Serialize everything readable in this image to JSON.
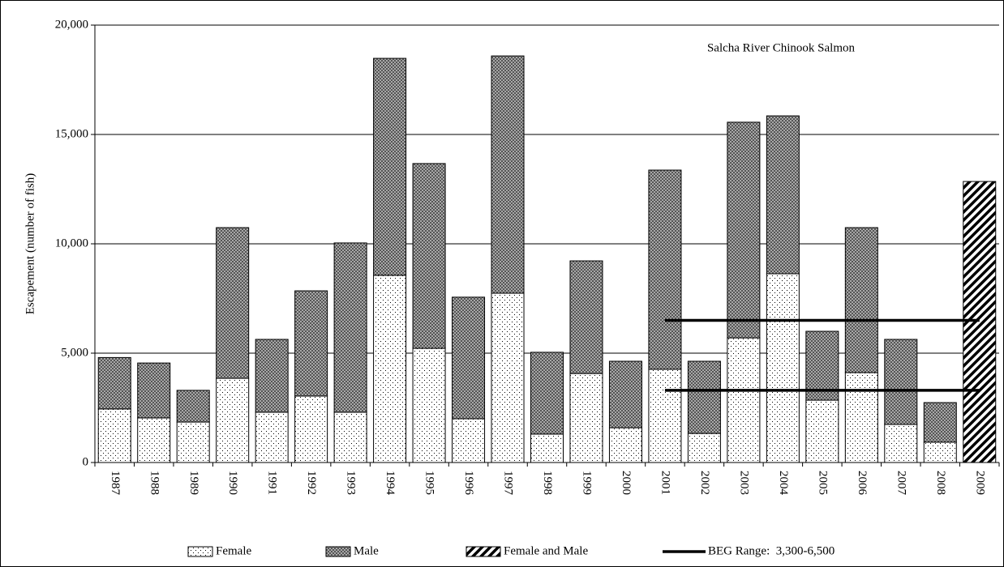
{
  "chart_data": {
    "type": "bar",
    "stacked": true,
    "annotation": "Salcha River Chinook Salmon",
    "y_label": "Escapement (number of fish)",
    "categories": [
      "1987",
      "1988",
      "1989",
      "1990",
      "1991",
      "1992",
      "1993",
      "1994",
      "1995",
      "1996",
      "1997",
      "1998",
      "1999",
      "2000",
      "2001",
      "2002",
      "2003",
      "2004",
      "2005",
      "2006",
      "2007",
      "2008",
      "2009"
    ],
    "series": [
      {
        "name": "Female",
        "color": "#ffffff",
        "values": [
          2450,
          2040,
          1850,
          3850,
          2300,
          3040,
          2300,
          8560,
          5220,
          2000,
          7740,
          1300,
          4070,
          1590,
          4260,
          1330,
          5700,
          8630,
          2850,
          4110,
          1740,
          930,
          null
        ]
      },
      {
        "name": "Male",
        "color": "#a8a8a8",
        "values": [
          2350,
          2510,
          1450,
          6890,
          3330,
          4810,
          7740,
          9920,
          8450,
          5560,
          10850,
          3740,
          5150,
          3040,
          9110,
          3300,
          9860,
          7220,
          3150,
          6630,
          3890,
          1810,
          null
        ]
      },
      {
        "name": "Female and Male",
        "color": "#ffffff",
        "values": [
          null,
          null,
          null,
          null,
          null,
          null,
          null,
          null,
          null,
          null,
          null,
          null,
          null,
          null,
          null,
          null,
          null,
          null,
          null,
          null,
          null,
          null,
          12850
        ]
      }
    ],
    "reference_lines": {
      "name": "BEG Range:  3,300-6,500",
      "color": "#000000",
      "values": [
        3300,
        6500
      ],
      "from": "2001",
      "to": "2009"
    },
    "ylim": [
      0,
      20000
    ],
    "yticks": [
      0,
      {
        "value": 5000,
        "label": "5,000"
      },
      {
        "value": 10000,
        "label": "10,000"
      },
      {
        "value": 15000,
        "label": "15,000"
      },
      {
        "value": 20000,
        "label": "20,000"
      }
    ],
    "grid": true,
    "legend": "bottom"
  }
}
